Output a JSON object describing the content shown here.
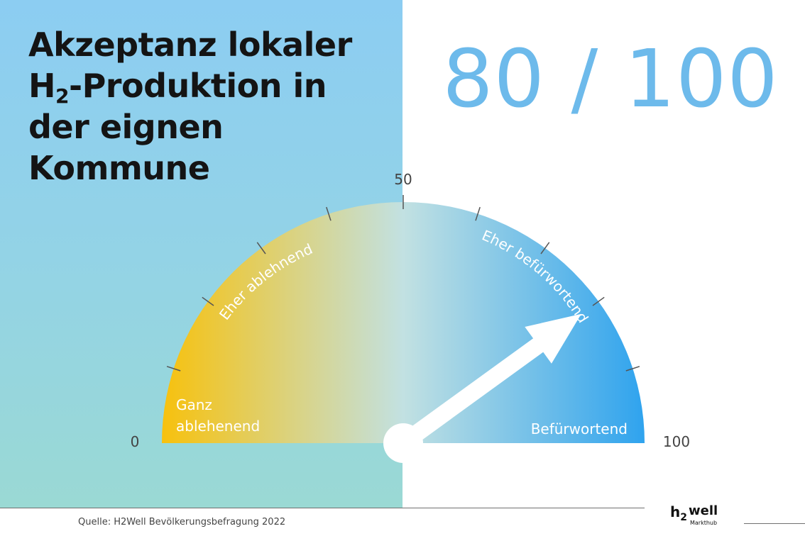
{
  "title": {
    "line1": "Akzeptanz lokaler",
    "line2_pre": "H",
    "line2_sub": "2",
    "line2_post": "-Produktion in",
    "line3": "der eignen",
    "line4": "Kommune"
  },
  "score": {
    "text": "80 / 100"
  },
  "chart_data": {
    "type": "gauge",
    "value": 80,
    "min": 0,
    "max": 100,
    "tick_labels": [
      "0",
      "50",
      "100"
    ],
    "zones": [
      {
        "line1": "Ganz",
        "line2": "ablehenend"
      },
      {
        "label": "Eher ablehnend"
      },
      {
        "label": "Eher befürwortend"
      },
      {
        "label": "Befürwortend"
      }
    ],
    "colors": {
      "low": "#f7c10d",
      "mid": "#c2e1e2",
      "high": "#2fa3ee",
      "needle": "#ffffff"
    }
  },
  "footer": {
    "source": "Quelle: H2Well Bevölkerungsbefragung 2022",
    "logo_h": "h",
    "logo_2": "2",
    "logo_well": "well",
    "logo_sub": "Markthub"
  }
}
